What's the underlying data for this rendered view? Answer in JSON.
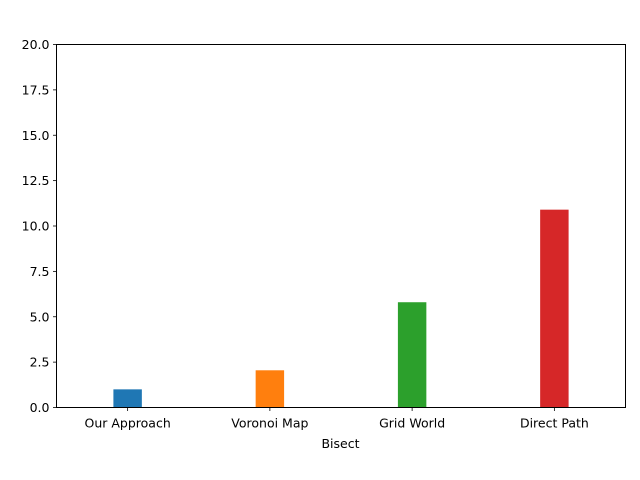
{
  "chart_data": {
    "type": "bar",
    "categories": [
      "Our Approach",
      "Voronoi Map",
      "Grid World",
      "Direct Path"
    ],
    "values": [
      1.0,
      2.05,
      5.8,
      10.9
    ],
    "colors": [
      "#1f77b4",
      "#ff7f0e",
      "#2ca02c",
      "#d62728"
    ],
    "xlabel": "Bisect",
    "ylabel": "",
    "ylim": [
      0,
      20
    ],
    "yticks": [
      0.0,
      2.5,
      5.0,
      7.5,
      10.0,
      12.5,
      15.0,
      17.5,
      20.0
    ],
    "ytick_labels": [
      "0.0",
      "2.5",
      "5.0",
      "7.5",
      "10.0",
      "12.5",
      "15.0",
      "17.5",
      "20.0"
    ],
    "grid": false,
    "legend": "none"
  }
}
